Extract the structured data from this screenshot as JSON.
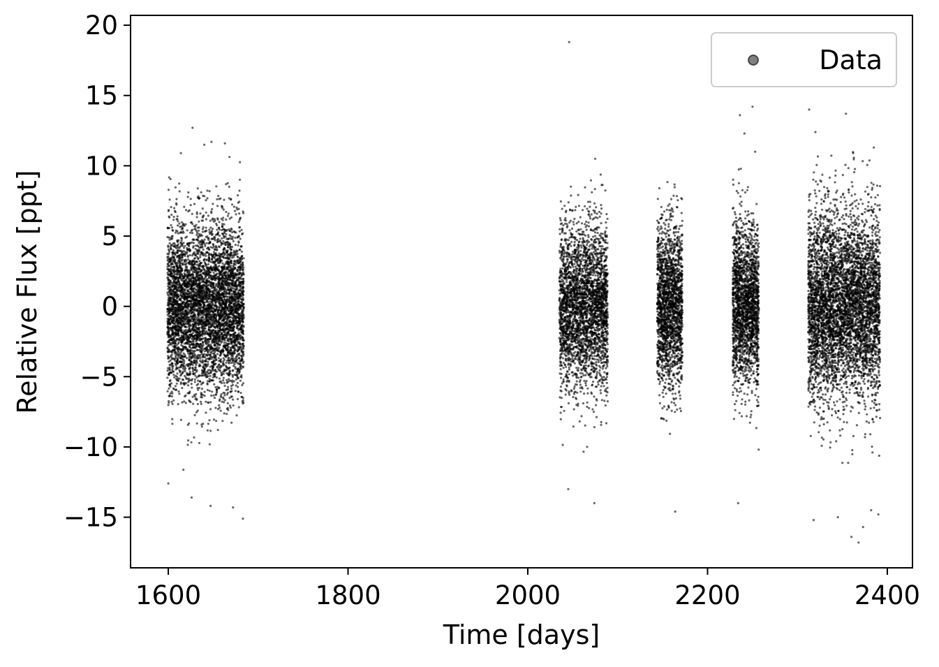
{
  "chart_data": {
    "type": "scatter",
    "title": "",
    "xlabel": "Time [days]",
    "ylabel": "Relative Flux [ppt]",
    "xlim": [
      1558,
      2428
    ],
    "ylim": [
      -18.6,
      20.7
    ],
    "x_ticks": [
      1600,
      1800,
      2000,
      2200,
      2400
    ],
    "x_tick_labels": [
      "1600",
      "1800",
      "2000",
      "2200",
      "2400"
    ],
    "y_ticks": [
      -15,
      -10,
      -5,
      0,
      5,
      10,
      15,
      20
    ],
    "y_tick_labels": [
      "−15",
      "−10",
      "−5",
      "0",
      "5",
      "10",
      "15",
      "20"
    ],
    "grid": false,
    "legend": {
      "position": "top-right"
    },
    "series": [
      {
        "name": "Data",
        "color": "#000000",
        "marker": "circle",
        "segments": [
          {
            "x_range": [
              1599,
              1684
            ],
            "flux_spread": 3.0,
            "n_points": 5200
          },
          {
            "x_range": [
              2035,
              2089
            ],
            "flux_spread": 2.9,
            "n_points": 3000
          },
          {
            "x_range": [
              2144,
              2172
            ],
            "flux_spread": 2.9,
            "n_points": 1900
          },
          {
            "x_range": [
              2228,
              2257
            ],
            "flux_spread": 2.9,
            "n_points": 2000
          },
          {
            "x_range": [
              2312,
              2392
            ],
            "flux_spread": 3.3,
            "n_points": 5000
          }
        ],
        "outliers": [
          {
            "x": 2046,
            "y": 18.8
          },
          {
            "x": 2250,
            "y": 14.2
          },
          {
            "x": 2313,
            "y": 14.0
          },
          {
            "x": 2236,
            "y": 13.6
          },
          {
            "x": 2354,
            "y": 13.7
          },
          {
            "x": 1627,
            "y": 12.7
          },
          {
            "x": 2241,
            "y": 12.3
          },
          {
            "x": 2320,
            "y": 12.4
          },
          {
            "x": 2253,
            "y": 11.0
          },
          {
            "x": 1663,
            "y": 11.6
          },
          {
            "x": 1648,
            "y": 11.7
          },
          {
            "x": 1640,
            "y": 11.5
          },
          {
            "x": 1614,
            "y": 10.9
          },
          {
            "x": 2362,
            "y": 10.9
          },
          {
            "x": 2385,
            "y": 11.3
          },
          {
            "x": 2075,
            "y": 10.5
          },
          {
            "x": 1683,
            "y": -15.1
          },
          {
            "x": 1672,
            "y": -14.3
          },
          {
            "x": 1647,
            "y": -14.2
          },
          {
            "x": 2074,
            "y": -14.0
          },
          {
            "x": 2164,
            "y": -14.6
          },
          {
            "x": 2234,
            "y": -14.0
          },
          {
            "x": 2382,
            "y": -14.5
          },
          {
            "x": 2360,
            "y": -16.4
          },
          {
            "x": 2368,
            "y": -16.8
          },
          {
            "x": 2373,
            "y": -15.7
          },
          {
            "x": 2318,
            "y": -15.2
          },
          {
            "x": 2345,
            "y": -15.0
          },
          {
            "x": 1626,
            "y": -13.6
          },
          {
            "x": 2045,
            "y": -13.0
          },
          {
            "x": 1600,
            "y": -12.6
          },
          {
            "x": 2390,
            "y": -14.8
          }
        ]
      }
    ]
  }
}
